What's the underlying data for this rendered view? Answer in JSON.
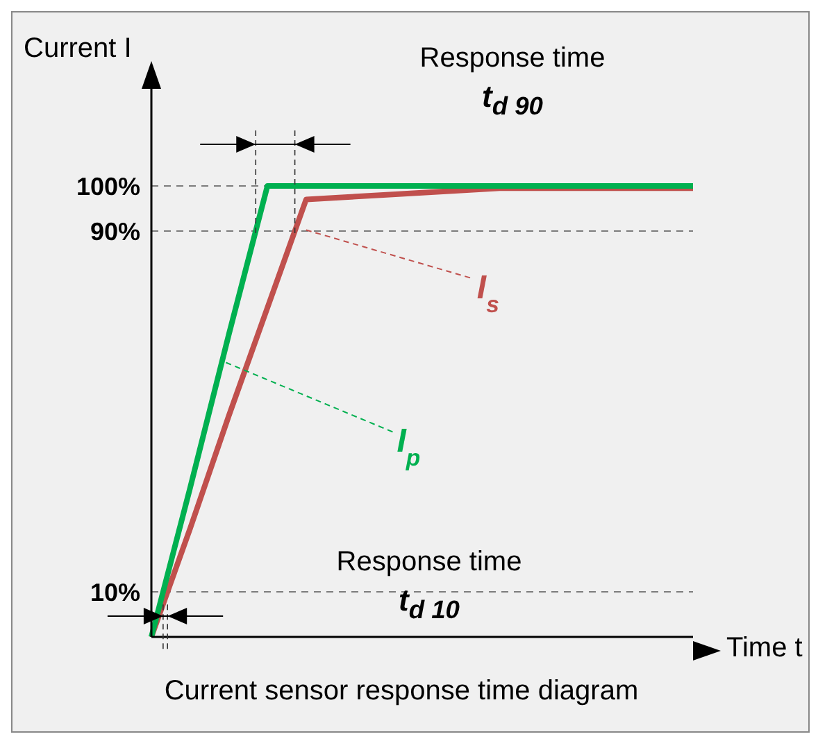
{
  "chart_data": {
    "type": "line",
    "title": "Current sensor response time diagram",
    "xlabel": "Time t",
    "ylabel": "Current I",
    "categories": [
      null,
      null,
      null,
      null,
      null,
      null,
      null,
      null,
      null,
      null,
      null,
      null,
      null,
      null,
      null
    ],
    "ylim": [
      0,
      120
    ],
    "yticks": [
      {
        "value": 10,
        "label": "10%"
      },
      {
        "value": 90,
        "label": "90%"
      },
      {
        "value": 100,
        "label": "100%"
      }
    ],
    "tick_labels": "y",
    "marker": "none",
    "line_style": "solid",
    "series": [
      {
        "name": "I$_{s}$",
        "color": "#c0504d",
        "values": [
          0,
          24,
          49,
          73,
          97,
          97.5,
          98,
          98.5,
          99,
          99.5,
          99.5,
          99.5,
          99.5,
          99.5,
          99.5
        ]
      },
      {
        "name": "I$_{p}$",
        "color": "#00b050",
        "values": [
          0,
          33,
          67,
          100,
          100,
          100,
          100,
          100,
          100,
          100,
          100,
          100,
          100,
          100,
          100
        ]
      }
    ],
    "ref_lines": [
      {
        "axis": "y",
        "value": 10,
        "line_style": "dashed",
        "color": "#555555"
      },
      {
        "axis": "y",
        "value": 90,
        "line_style": "dashed",
        "color": "#555555"
      },
      {
        "axis": "y",
        "value": 100,
        "line_style": "dashed",
        "color": "#555555"
      }
    ],
    "annotations": [
      "Response time",
      "t$_{d 90}$",
      "Response time",
      "t$_{d 10}$"
    ]
  }
}
